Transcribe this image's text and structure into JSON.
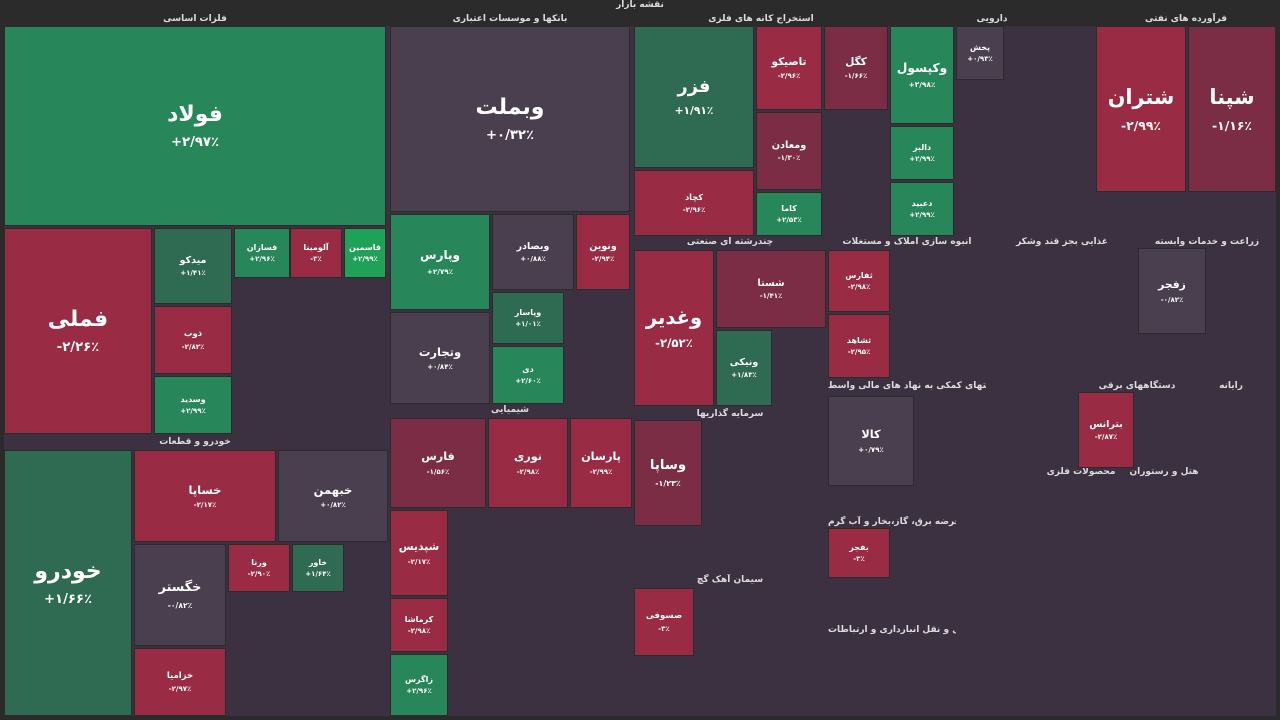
{
  "title": "نقشه بازار",
  "sectors": [
    {
      "name": "فلزات اساسی"
    },
    {
      "name": "بانکها و موسسات اعتباری"
    },
    {
      "name": "استخراج کانه های فلزی"
    },
    {
      "name": "دارویی"
    },
    {
      "name": "فرآورده های نفتی"
    },
    {
      "name": "خودرو و قطعات"
    },
    {
      "name": "شیمیایی"
    },
    {
      "name": "چندرشته ای صنعتی"
    },
    {
      "name": "انبوه سازی املاک و مستغلات"
    },
    {
      "name": "غذایی بجز قند وشکر"
    },
    {
      "name": "زراعت و خدمات وابسته"
    },
    {
      "name": "سرمایه گذاریها"
    },
    {
      "name": "سیمان آهک گچ"
    },
    {
      "name": "فعالیتهای کمکی به نهاد های مالی واسط"
    },
    {
      "name": "عرضه برق، گاز،بخار و آب گرم"
    },
    {
      "name": "حمل و نقل انبارداری و ارتباطات"
    },
    {
      "name": "دستگاههای برقی"
    },
    {
      "name": "رایانه"
    },
    {
      "name": "محصولات فلزی"
    },
    {
      "name": "هتل و رستوران"
    }
  ],
  "tiles": [
    {
      "name": "فولاد",
      "change": "+۲/۹۷٪",
      "color": "#27875a"
    },
    {
      "name": "فملی",
      "change": "-۲/۲۶٪",
      "color": "#9a2b45"
    },
    {
      "name": "میدکو",
      "change": "+۱/۴۱٪",
      "color": "#2f6a52"
    },
    {
      "name": "ذوب",
      "change": "-۲/۸۲٪",
      "color": "#9a2b45"
    },
    {
      "name": "وسدید",
      "change": "+۲/۹۹٪",
      "color": "#27875a"
    },
    {
      "name": "فسازان",
      "change": "+۲/۹۶٪",
      "color": "#27875a"
    },
    {
      "name": "آلومینا",
      "change": "-۳٪",
      "color": "#9a2b45"
    },
    {
      "name": "فاسمین",
      "change": "+۲/۹۹٪",
      "color": "#1fa257"
    },
    {
      "name": "وبملت",
      "change": "+۰/۳۲٪",
      "color": "#4a3f4e"
    },
    {
      "name": "وپارس",
      "change": "+۲/۷۹٪",
      "color": "#27875a"
    },
    {
      "name": "وبصادر",
      "change": "+۰/۸۸٪",
      "color": "#4a3f4e"
    },
    {
      "name": "ونوین",
      "change": "-۲/۹۴٪",
      "color": "#9a2b45"
    },
    {
      "name": "وتجارت",
      "change": "+۰/۸۴٪",
      "color": "#4a3f4e"
    },
    {
      "name": "وپاسار",
      "change": "+۱/۰۱٪",
      "color": "#2f6a52"
    },
    {
      "name": "دی",
      "change": "+۲/۶۰٪",
      "color": "#27875a"
    },
    {
      "name": "فزر",
      "change": "+۱/۹۱٪",
      "color": "#2f6a52"
    },
    {
      "name": "کچاد",
      "change": "-۲/۹۶٪",
      "color": "#9a2b45"
    },
    {
      "name": "تاصیکو",
      "change": "-۲/۹۶٪",
      "color": "#9a2b45"
    },
    {
      "name": "کگل",
      "change": "-۱/۶۶٪",
      "color": "#7a2d44"
    },
    {
      "name": "ومعادن",
      "change": "-۱/۳۰٪",
      "color": "#7a2d44"
    },
    {
      "name": "کاما",
      "change": "+۲/۵۳٪",
      "color": "#27875a"
    },
    {
      "name": "وکپسول",
      "change": "+۲/۹۸٪",
      "color": "#27875a"
    },
    {
      "name": "دالبر",
      "change": "+۲/۹۹٪",
      "color": "#27875a"
    },
    {
      "name": "دعبید",
      "change": "+۲/۹۹٪",
      "color": "#27875a"
    },
    {
      "name": "پخش",
      "change": "+۰/۹۳٪",
      "color": "#4a3f4e"
    },
    {
      "name": "شتران",
      "change": "-۲/۹۹٪",
      "color": "#9a2b45"
    },
    {
      "name": "شپنا",
      "change": "-۱/۱۶٪",
      "color": "#7a2d44"
    },
    {
      "name": "خودرو",
      "change": "+۱/۶۶٪",
      "color": "#2f6a52"
    },
    {
      "name": "خساپا",
      "change": "-۲/۱۷٪",
      "color": "#9a2b45"
    },
    {
      "name": "خبهمن",
      "change": "+۰/۸۲٪",
      "color": "#4a3f4e"
    },
    {
      "name": "خگستر",
      "change": "-۰/۸۲٪",
      "color": "#4a3f4e"
    },
    {
      "name": "خزامیا",
      "change": "-۲/۹۷٪",
      "color": "#9a2b45"
    },
    {
      "name": "ورنا",
      "change": "-۲/۹۰٪",
      "color": "#9a2b45"
    },
    {
      "name": "خاور",
      "change": "+۱/۶۴٪",
      "color": "#2f6a52"
    },
    {
      "name": "فارس",
      "change": "-۱/۵۶٪",
      "color": "#7a2d44"
    },
    {
      "name": "نوری",
      "change": "-۲/۹۸٪",
      "color": "#9a2b45"
    },
    {
      "name": "پارسان",
      "change": "-۲/۹۹٪",
      "color": "#9a2b45"
    },
    {
      "name": "شپدیس",
      "change": "-۲/۱۷٪",
      "color": "#9a2b45"
    },
    {
      "name": "کرماشا",
      "change": "-۲/۹۸٪",
      "color": "#9a2b45"
    },
    {
      "name": "زاگرس",
      "change": "+۲/۹۶٪",
      "color": "#27875a"
    },
    {
      "name": "وغدیر",
      "change": "-۲/۵۲٪",
      "color": "#9a2b45"
    },
    {
      "name": "شستا",
      "change": "-۱/۴۱٪",
      "color": "#7a2d44"
    },
    {
      "name": "ونیکی",
      "change": "+۱/۸۳٪",
      "color": "#2f6a52"
    },
    {
      "name": "وساپا",
      "change": "-۱/۲۳٪",
      "color": "#7a2d44"
    },
    {
      "name": "صسوفی",
      "change": "-۳٪",
      "color": "#9a2b45"
    },
    {
      "name": "ثفارس",
      "change": "-۲/۹۸٪",
      "color": "#9a2b45"
    },
    {
      "name": "ثشاهد",
      "change": "-۲/۹۵٪",
      "color": "#9a2b45"
    },
    {
      "name": "کالا",
      "change": "+۰/۷۹٪",
      "color": "#4a3f4e"
    },
    {
      "name": "بفجر",
      "change": "-۳٪",
      "color": "#9a2b45"
    },
    {
      "name": "بترانس",
      "change": "-۲/۸۷٪",
      "color": "#9a2b45"
    },
    {
      "name": "زفجر",
      "change": "-۰/۸۲٪",
      "color": "#4a3f4e"
    }
  ]
}
